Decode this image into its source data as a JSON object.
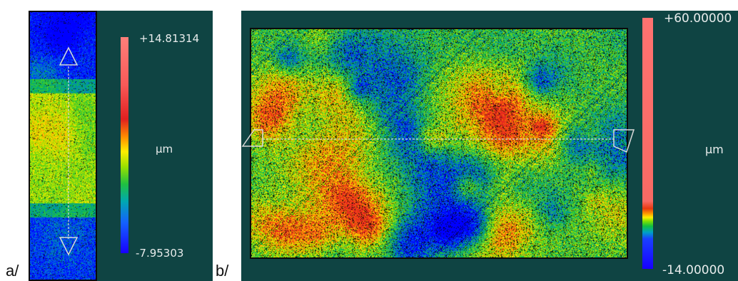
{
  "labels": {
    "a": "a/",
    "b": "b/"
  },
  "panel_a": {
    "scale_max": "+14.81314",
    "unit": "µm",
    "scale_min": "-7.95303"
  },
  "panel_b": {
    "scale_max": "+60.00000",
    "unit": "µm",
    "scale_min": "-14.00000"
  },
  "colors": {
    "panel_bg": "#0f4443",
    "profile_line": "#d8d8d8"
  }
}
